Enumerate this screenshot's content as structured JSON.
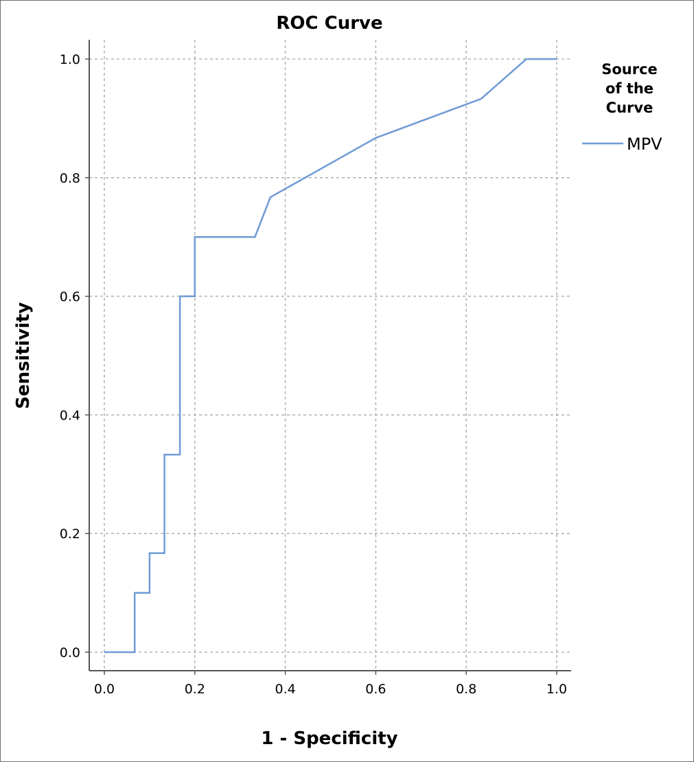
{
  "chart_data": {
    "type": "line",
    "title": "ROC Curve",
    "xlabel": "1 - Specificity",
    "ylabel": "Sensitivity",
    "xlim": [
      0,
      1
    ],
    "ylim": [
      0,
      1
    ],
    "x_ticks": [
      "0.0",
      "0.2",
      "0.4",
      "0.6",
      "0.8",
      "1.0"
    ],
    "y_ticks": [
      "0.0",
      "0.2",
      "0.4",
      "0.6",
      "0.8",
      "1.0"
    ],
    "grid": true,
    "legend": {
      "title_lines": [
        "Source",
        "of the",
        "Curve"
      ],
      "placement": "right"
    },
    "series": [
      {
        "name": "MPV",
        "color": "#6f9bd6",
        "x": [
          0.0,
          0.067,
          0.067,
          0.1,
          0.1,
          0.133,
          0.133,
          0.167,
          0.167,
          0.2,
          0.2,
          0.333,
          0.367,
          0.6,
          0.833,
          0.933,
          1.0
        ],
        "y": [
          0.0,
          0.0,
          0.1,
          0.1,
          0.167,
          0.167,
          0.333,
          0.333,
          0.6,
          0.6,
          0.7,
          0.7,
          0.767,
          0.867,
          0.933,
          1.0,
          1.0
        ]
      }
    ]
  }
}
